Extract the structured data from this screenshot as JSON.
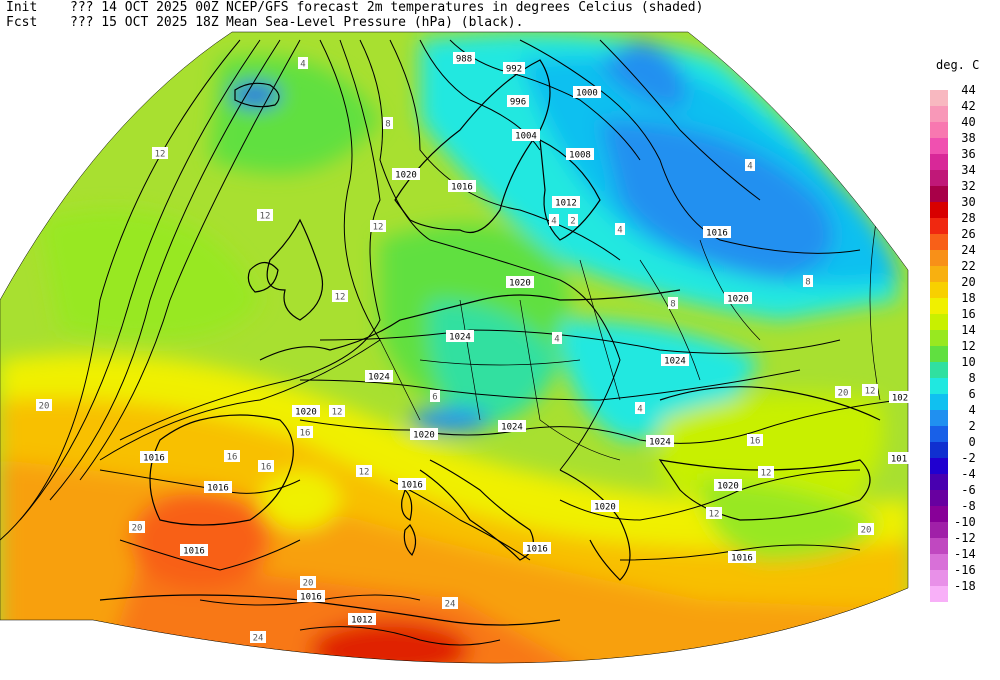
{
  "header": {
    "line1": {
      "label": "Init",
      "run": "??? 14 OCT 2025 00Z",
      "title": "NCEP/GFS forecast 2m temperatures in degrees Celcius (shaded)"
    },
    "line2": {
      "label": "Fcst",
      "run": "??? 15 OCT 2025 18Z",
      "title": "Mean Sea-Level Pressure (hPa) (black)."
    }
  },
  "legend": {
    "unit": "deg. C",
    "entries": [
      {
        "label": "44",
        "color": "#f8b8c0"
      },
      {
        "label": "42",
        "color": "#f898b8"
      },
      {
        "label": "40",
        "color": "#f878b0"
      },
      {
        "label": "38",
        "color": "#f050b0"
      },
      {
        "label": "36",
        "color": "#d82898"
      },
      {
        "label": "34",
        "color": "#c01878"
      },
      {
        "label": "32",
        "color": "#a80048"
      },
      {
        "label": "30",
        "color": "#d80000"
      },
      {
        "label": "28",
        "color": "#f02810"
      },
      {
        "label": "26",
        "color": "#f86018"
      },
      {
        "label": "24",
        "color": "#f89018"
      },
      {
        "label": "22",
        "color": "#f8b010"
      },
      {
        "label": "20",
        "color": "#f8d000"
      },
      {
        "label": "18",
        "color": "#f0f000"
      },
      {
        "label": "16",
        "color": "#c8f000"
      },
      {
        "label": "14",
        "color": "#98e820"
      },
      {
        "label": "12",
        "color": "#60e040"
      },
      {
        "label": "10",
        "color": "#30e0a0"
      },
      {
        "label": "8",
        "color": "#20e8e0"
      },
      {
        "label": "6",
        "color": "#10c0f0"
      },
      {
        "label": "4",
        "color": "#2090f0"
      },
      {
        "label": "2",
        "color": "#1860e8"
      },
      {
        "label": "0",
        "color": "#1030d0"
      },
      {
        "label": "-2",
        "color": "#2000d0"
      },
      {
        "label": "-4",
        "color": "#4800b0"
      },
      {
        "label": "-6",
        "color": "#6800a0"
      },
      {
        "label": "-8",
        "color": "#880098"
      },
      {
        "label": "-10",
        "color": "#a020a8"
      },
      {
        "label": "-12",
        "color": "#c048c0"
      },
      {
        "label": "-14",
        "color": "#d870d8"
      },
      {
        "label": "-16",
        "color": "#e890e8"
      },
      {
        "label": "-18",
        "color": "#f8b0f8"
      }
    ]
  },
  "isobar_labels": [
    "988",
    "992",
    "996",
    "1000",
    "1004",
    "1008",
    "1012",
    "1016",
    "1016",
    "1020",
    "1020",
    "1020",
    "1020",
    "1020",
    "1024",
    "1024",
    "1024",
    "1024",
    "1024",
    "1020",
    "1016",
    "1016",
    "1016",
    "1016",
    "1016",
    "1012",
    "1016",
    "101",
    "102",
    "1020",
    "1016"
  ],
  "temp_labels": [
    "4",
    "4",
    "8",
    "12",
    "12",
    "12",
    "12",
    "12",
    "8",
    "4",
    "4",
    "8",
    "20",
    "16",
    "16",
    "12",
    "16",
    "20",
    "24",
    "24",
    "20",
    "20",
    "20",
    "12",
    "4",
    "16",
    "12",
    "12",
    "6",
    "4",
    "2"
  ]
}
